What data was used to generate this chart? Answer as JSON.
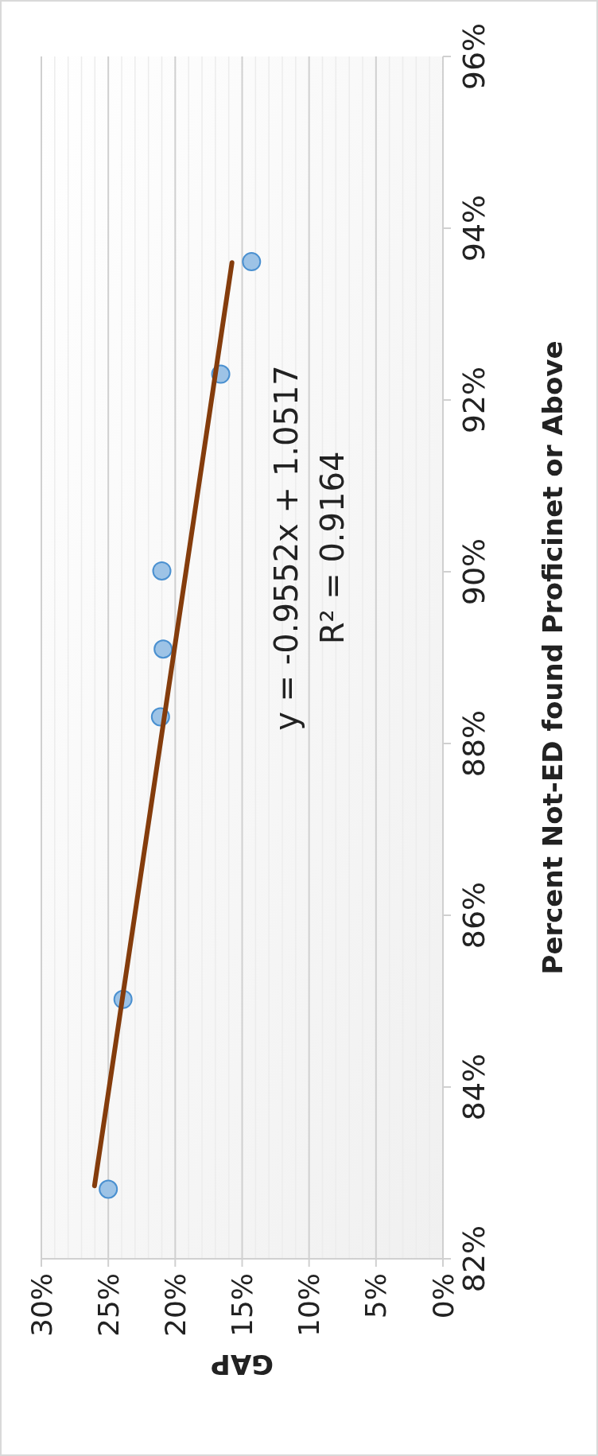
{
  "chart_data": {
    "type": "scatter",
    "xlabel": "GAP",
    "ylabel": "Percent Not-ED found Proficinet or Above",
    "x": [
      25.0,
      23.9,
      21.1,
      20.9,
      21.0,
      16.6,
      14.3
    ],
    "series": [
      {
        "color": "#9dc3e6",
        "values": [
          82.81,
          85.02,
          88.31,
          89.1,
          90.01,
          92.3,
          93.61
        ],
        "marker": "circle"
      },
      {
        "type": "line",
        "color": "#843c0c",
        "x": [
          26.03,
          15.76
        ],
        "values": [
          82.85,
          93.6
        ],
        "line_style": "solid",
        "marker": "none"
      }
    ],
    "ylim": [
      82,
      96
    ],
    "yticks": [
      {
        "value": 82,
        "label": "82%"
      },
      {
        "value": 84,
        "label": "84%"
      },
      {
        "value": 86,
        "label": "86%"
      },
      {
        "value": 88,
        "label": "88%"
      },
      {
        "value": 90,
        "label": "90%"
      },
      {
        "value": 92,
        "label": "92%"
      },
      {
        "value": 94,
        "label": "94%"
      },
      {
        "value": 96,
        "label": "96%"
      }
    ],
    "xlim": [
      30,
      0
    ],
    "xticks": [
      {
        "value": 30,
        "label": "30%"
      },
      {
        "value": 29,
        "label": null
      },
      {
        "value": 28,
        "label": null
      },
      {
        "value": 27,
        "label": null
      },
      {
        "value": 26,
        "label": null
      },
      {
        "value": 25,
        "label": "25%"
      },
      {
        "value": 24,
        "label": null
      },
      {
        "value": 23,
        "label": null
      },
      {
        "value": 22,
        "label": null
      },
      {
        "value": 21,
        "label": null
      },
      {
        "value": 20,
        "label": "20%"
      },
      {
        "value": 19,
        "label": null
      },
      {
        "value": 18,
        "label": null
      },
      {
        "value": 17,
        "label": null
      },
      {
        "value": 16,
        "label": null
      },
      {
        "value": 15,
        "label": "15%"
      },
      {
        "value": 14,
        "label": null
      },
      {
        "value": 13,
        "label": null
      },
      {
        "value": 12,
        "label": null
      },
      {
        "value": 11,
        "label": null
      },
      {
        "value": 10,
        "label": "10%"
      },
      {
        "value": 9,
        "label": null
      },
      {
        "value": 8,
        "label": null
      },
      {
        "value": 7,
        "label": null
      },
      {
        "value": 6,
        "label": null
      },
      {
        "value": 5,
        "label": "5%"
      },
      {
        "value": 4,
        "label": null
      },
      {
        "value": 3,
        "label": null
      },
      {
        "value": 2,
        "label": null
      },
      {
        "value": 1,
        "label": null
      },
      {
        "value": 0,
        "label": "0%"
      }
    ],
    "grid": "x",
    "annotations": [
      "y = -0.9552x + 1.0517",
      "R² = 0.9164"
    ]
  }
}
